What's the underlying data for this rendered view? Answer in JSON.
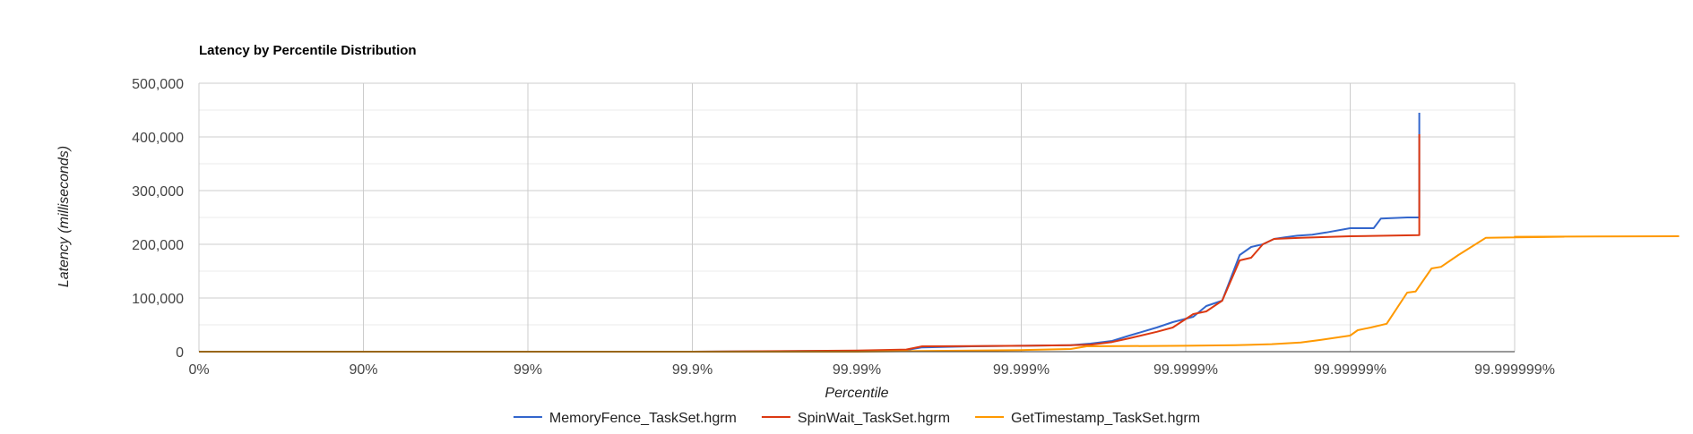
{
  "chart_data": {
    "type": "line",
    "title": "Latency by Percentile Distribution",
    "xlabel": "Percentile",
    "ylabel": "Latency (milliseconds)",
    "x_scale": "log 1/(1-p)",
    "x_ticks": [
      "0%",
      "90%",
      "99%",
      "99.9%",
      "99.99%",
      "99.999%",
      "99.9999%",
      "99.99999%",
      "99.999999%"
    ],
    "y_ticks": [
      "0",
      "100,000",
      "200,000",
      "300,000",
      "400,000",
      "500,000"
    ],
    "ylim": [
      0,
      500000
    ],
    "grid": true,
    "legend_position": "bottom",
    "series": [
      {
        "name": "MemoryFence_TaskSet.hgrm",
        "color": "#3366cc",
        "points": [
          [
            "0%",
            0
          ],
          [
            "90%",
            0
          ],
          [
            "99%",
            0
          ],
          [
            "99.9%",
            0
          ],
          [
            "99.95%",
            500
          ],
          [
            "99.99%",
            1500
          ],
          [
            "99.995%",
            3000
          ],
          [
            "99.996%",
            8000
          ],
          [
            "99.998%",
            10000
          ],
          [
            "99.999%",
            11000
          ],
          [
            "99.9995%",
            12000
          ],
          [
            "99.99962%",
            15000
          ],
          [
            "99.99972%",
            20000
          ],
          [
            "99.99978%",
            30000
          ],
          [
            "99.99985%",
            45000
          ],
          [
            "99.99988%",
            55000
          ],
          [
            "99.99991%",
            65000
          ],
          [
            "99.999925%",
            85000
          ],
          [
            "99.99994%",
            95000
          ],
          [
            "99.999953%",
            180000
          ],
          [
            "99.99996%",
            195000
          ],
          [
            "99.999966%",
            200000
          ],
          [
            "99.999971%",
            210000
          ],
          [
            "99.999975%",
            213000
          ],
          [
            "99.999979%",
            216000
          ],
          [
            "99.999983%",
            218000
          ],
          [
            "99.999986%",
            222000
          ],
          [
            "99.99999%",
            230000
          ],
          [
            "99.9999928%",
            230000
          ],
          [
            "99.9999935%",
            248000
          ],
          [
            "99.9999955%",
            250000
          ],
          [
            "99.9999962%",
            250000
          ],
          [
            "99.9999962%",
            445000
          ]
        ]
      },
      {
        "name": "SpinWait_TaskSet.hgrm",
        "color": "#dc3912",
        "points": [
          [
            "0%",
            0
          ],
          [
            "90%",
            0
          ],
          [
            "99%",
            0
          ],
          [
            "99.9%",
            0
          ],
          [
            "99.97%",
            1000
          ],
          [
            "99.99%",
            2000
          ],
          [
            "99.995%",
            4000
          ],
          [
            "99.996%",
            10000
          ],
          [
            "99.998%",
            10500
          ],
          [
            "99.999%",
            11000
          ],
          [
            "99.9995%",
            12000
          ],
          [
            "99.99962%",
            13000
          ],
          [
            "99.99972%",
            18000
          ],
          [
            "99.99978%",
            25000
          ],
          [
            "99.99985%",
            37000
          ],
          [
            "99.99988%",
            45000
          ],
          [
            "99.99991%",
            70000
          ],
          [
            "99.999925%",
            75000
          ],
          [
            "99.99994%",
            95000
          ],
          [
            "99.999953%",
            170000
          ],
          [
            "99.99996%",
            175000
          ],
          [
            "99.999966%",
            200000
          ],
          [
            "99.999971%",
            210000
          ],
          [
            "99.99998%",
            212000
          ],
          [
            "99.99999%",
            215000
          ],
          [
            "99.9999962%",
            217000
          ],
          [
            "99.9999962%",
            405000
          ]
        ]
      },
      {
        "name": "GetTimestamp_TaskSet.hgrm",
        "color": "#ff9900",
        "points": [
          [
            "0%",
            0
          ],
          [
            "90%",
            0
          ],
          [
            "99%",
            0
          ],
          [
            "99.9%",
            0
          ],
          [
            "99.99%",
            0
          ],
          [
            "99.999%",
            3000
          ],
          [
            "99.9995%",
            5000
          ],
          [
            "99.9996%",
            10000
          ],
          [
            "99.9999%",
            11000
          ],
          [
            "99.99995%",
            12000
          ],
          [
            "99.99997%",
            14000
          ],
          [
            "99.99998%",
            17000
          ],
          [
            "99.999985%",
            22000
          ],
          [
            "99.99999%",
            30000
          ],
          [
            "99.999991%",
            40000
          ],
          [
            "99.9999925%",
            45000
          ],
          [
            "99.999994%",
            52000
          ],
          [
            "99.9999955%",
            110000
          ],
          [
            "99.999996%",
            112000
          ],
          [
            "99.9999968%",
            155000
          ],
          [
            "99.9999972%",
            158000
          ],
          [
            "99.9999978%",
            180000
          ],
          [
            "99.9999985%",
            212000
          ],
          [
            "99.999999%",
            213000
          ],
          [
            "99.9999995%",
            214000
          ],
          [
            "99.999999%",
            214000
          ],
          [
            "99.9999999%",
            215000
          ]
        ]
      }
    ]
  }
}
